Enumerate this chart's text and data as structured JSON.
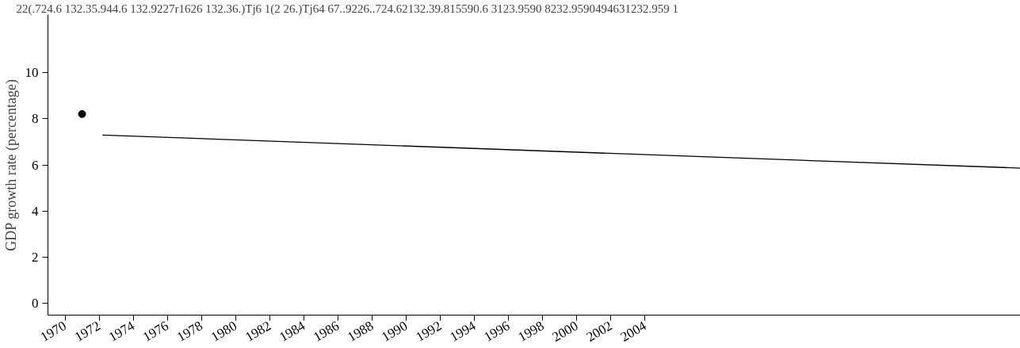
{
  "chart_data": {
    "type": "line",
    "ylabel": "GDP growth rate (percentage)",
    "annotations": [
      "22(.724.6 132.35.944.6 132.9227r1626 132.36.)Tj6 1(2 26.)Tj64 67..9226..724.62132.39.815590.6 3123.9590  8232.9590494631232.959 1"
    ],
    "series": [
      {
        "type": "scatter",
        "color": "#000000",
        "x": [
          1971.0
        ],
        "values": [
          8.2
        ]
      },
      {
        "color": "#000000",
        "x": [
          1972.2,
          2026.0
        ],
        "values": [
          7.29,
          5.86
        ]
      }
    ],
    "xlim": [
      1969.0,
      2026.0
    ],
    "xticks": [
      1970,
      1972,
      1974,
      1976,
      1978,
      1980,
      1982,
      1984,
      1986,
      1988,
      1990,
      1992,
      1994,
      1996,
      1998,
      2000,
      2002,
      2004
    ],
    "ylim": [
      -0.5,
      12.5
    ],
    "yticks": [
      0,
      2,
      4,
      6,
      8,
      10
    ],
    "grid": false
  }
}
